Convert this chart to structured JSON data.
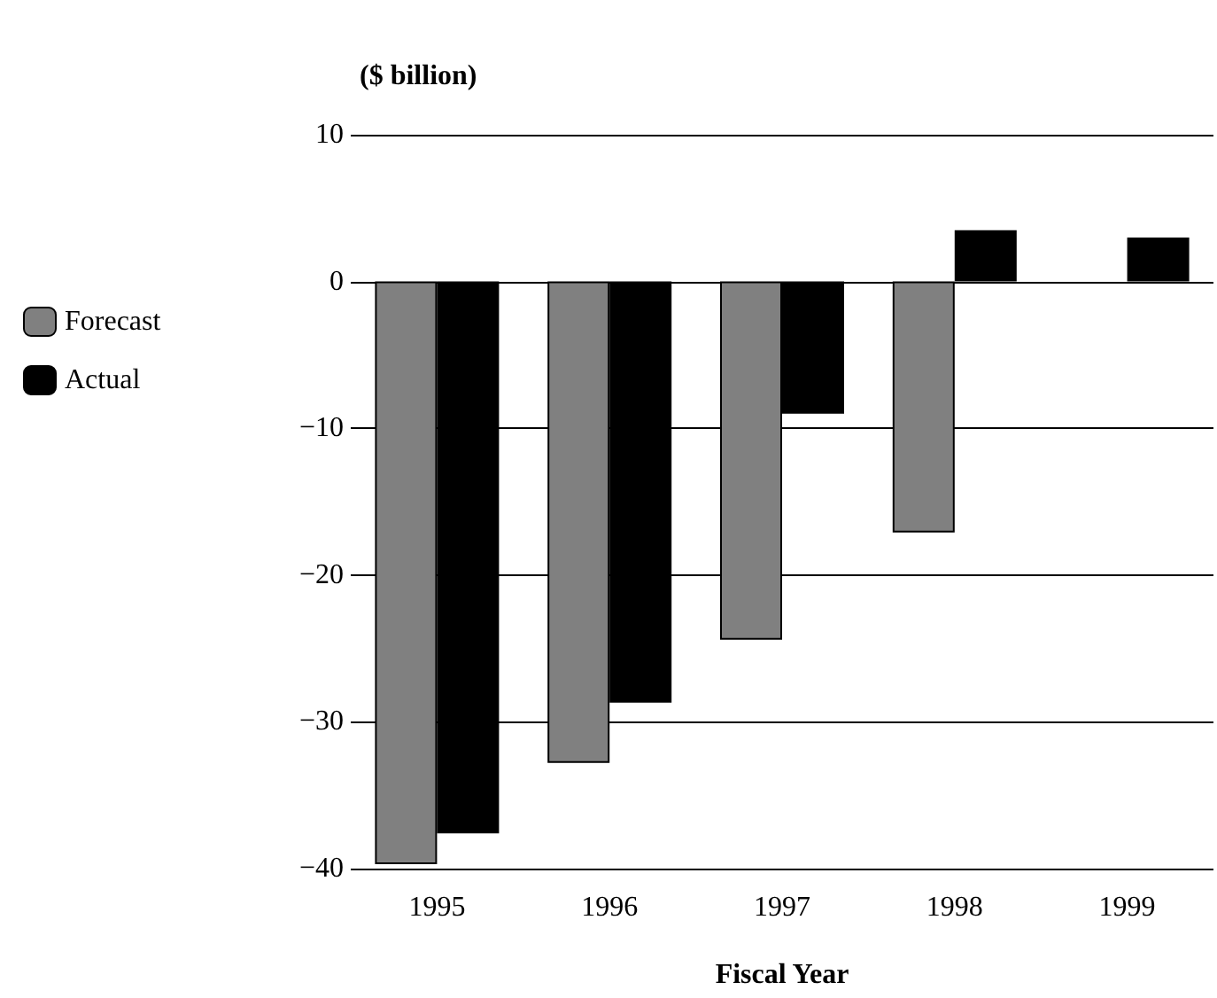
{
  "chart_data": {
    "type": "bar",
    "title": "($ billion)",
    "xlabel": "Fiscal Year",
    "categories": [
      "1995",
      "1996",
      "1997",
      "1998",
      "1999"
    ],
    "series": [
      {
        "name": "Forecast",
        "color": "#808080",
        "values": [
          -39.7,
          -32.8,
          -24.4,
          -17.1,
          null
        ]
      },
      {
        "name": "Actual",
        "color": "#000000",
        "values": [
          -37.6,
          -28.7,
          -9.0,
          3.5,
          3.0
        ]
      }
    ],
    "ylim": [
      -40,
      10
    ],
    "yticks": [
      -40,
      -30,
      -20,
      -10,
      0,
      10
    ],
    "grid": "y",
    "legend": "left"
  }
}
